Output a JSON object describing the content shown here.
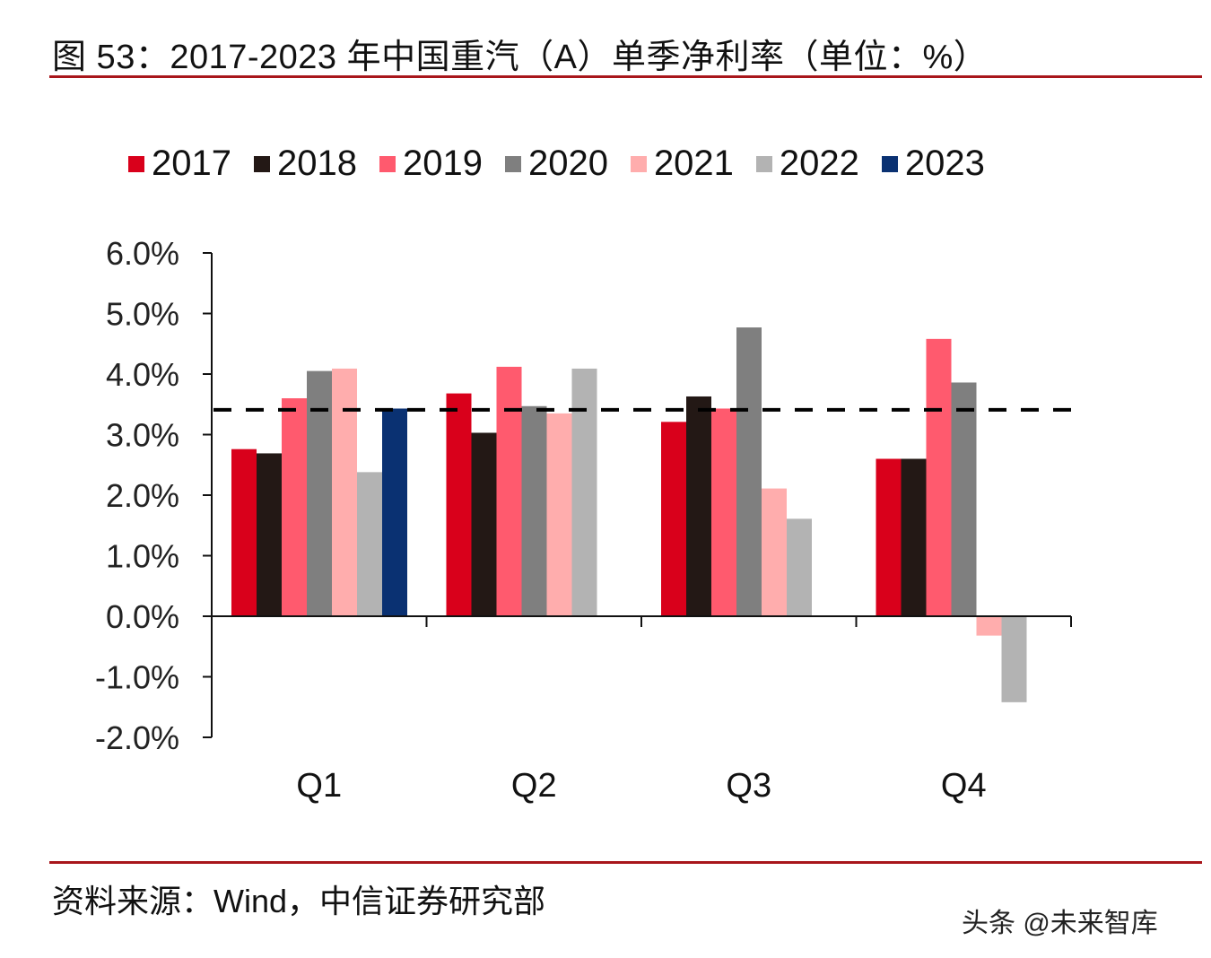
{
  "title": "图 53：2017-2023 年中国重汽（A）单季净利率（单位：%）",
  "source": "资料来源：Wind，中信证券研究部",
  "watermark": "头条 @未来智库",
  "chart_data": {
    "type": "bar",
    "title": "2017-2023 年中国重汽（A）单季净利率（单位：%）",
    "xlabel": "",
    "ylabel": "",
    "categories": [
      "Q1",
      "Q2",
      "Q3",
      "Q4"
    ],
    "ylim": [
      -2.0,
      6.0
    ],
    "yticks": [
      -2.0,
      -1.0,
      0.0,
      1.0,
      2.0,
      3.0,
      4.0,
      5.0,
      6.0
    ],
    "ytick_labels": [
      "-2.0%",
      "-1.0%",
      "0.0%",
      "1.0%",
      "2.0%",
      "3.0%",
      "4.0%",
      "5.0%",
      "6.0%"
    ],
    "grid": false,
    "legend_position": "top",
    "series": [
      {
        "name": "2017",
        "color": "#d9001b",
        "values": [
          2.76,
          3.68,
          3.21,
          2.6
        ]
      },
      {
        "name": "2018",
        "color": "#231815",
        "values": [
          2.69,
          3.03,
          3.63,
          2.6
        ]
      },
      {
        "name": "2019",
        "color": "#ff5a6e",
        "values": [
          3.6,
          4.12,
          3.43,
          4.58
        ]
      },
      {
        "name": "2020",
        "color": "#7f7f7f",
        "values": [
          4.05,
          3.47,
          4.77,
          3.86
        ]
      },
      {
        "name": "2021",
        "color": "#ffadad",
        "values": [
          4.09,
          3.35,
          2.11,
          -0.32
        ]
      },
      {
        "name": "2022",
        "color": "#b3b3b3",
        "values": [
          2.38,
          4.09,
          1.61,
          -1.42
        ]
      },
      {
        "name": "2023",
        "color": "#0a3172",
        "values": [
          3.43,
          null,
          null,
          null
        ]
      }
    ],
    "reference_line": {
      "style": "dashed",
      "color": "#000000",
      "value": 3.41
    }
  }
}
